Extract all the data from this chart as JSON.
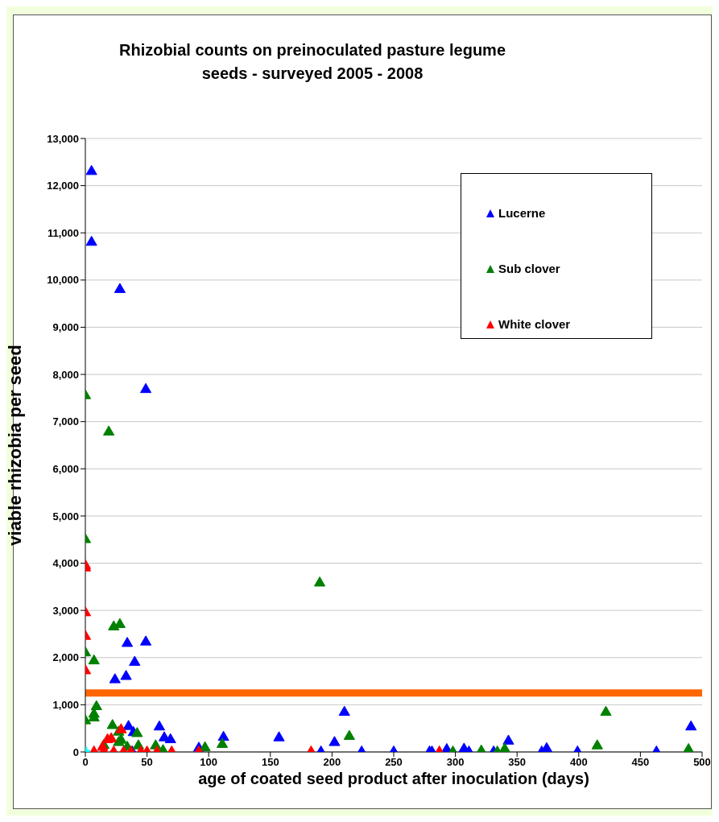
{
  "chart_data": {
    "type": "scatter",
    "title": "Rhizobial counts on preinoculated pasture legume\nseeds - surveyed 2005 - 2008",
    "xlabel": "age of coated seed product after inoculation (days)",
    "ylabel": "viable rhizobia per seed",
    "xlim": [
      0,
      500
    ],
    "xticks": [
      0,
      50,
      100,
      150,
      200,
      250,
      300,
      350,
      400,
      450,
      500
    ],
    "ylim": [
      0,
      13000
    ],
    "yticks": [
      {
        "value": 0,
        "label": "0"
      },
      {
        "value": 1000,
        "label": "1,000"
      },
      {
        "value": 2000,
        "label": "2,000"
      },
      {
        "value": 3000,
        "label": "3,000"
      },
      {
        "value": 4000,
        "label": "4,000"
      },
      {
        "value": 5000,
        "label": "5,000"
      },
      {
        "value": 6000,
        "label": "6,000"
      },
      {
        "value": 7000,
        "label": "7,000"
      },
      {
        "value": 8000,
        "label": "8,000"
      },
      {
        "value": 9000,
        "label": "9,000"
      },
      {
        "value": 10000,
        "label": "10,000"
      },
      {
        "value": 11000,
        "label": "11,000"
      },
      {
        "value": 12000,
        "label": "12,000"
      },
      {
        "value": 13000,
        "label": "13,000"
      }
    ],
    "grid": "y",
    "legend": "top right",
    "marker": "triangle",
    "ref_lines": [
      {
        "axis": "y",
        "value": 1250,
        "color": "#ff6600"
      }
    ],
    "series": [
      {
        "name": "Lucerne",
        "color": "#0000ff",
        "x": [
          5,
          5,
          28,
          49,
          34,
          49,
          40,
          33,
          24,
          35,
          60,
          39,
          64,
          69,
          92,
          112,
          38,
          157,
          210,
          202,
          191,
          224,
          250,
          279,
          281,
          293,
          307,
          311,
          331,
          343,
          370,
          374,
          399,
          463,
          491
        ],
        "values": [
          12300,
          10800,
          9800,
          7680,
          2300,
          2330,
          1900,
          1600,
          1530,
          540,
          530,
          410,
          300,
          260,
          80,
          310,
          0,
          300,
          840,
          200,
          0,
          0,
          0,
          0,
          0,
          50,
          60,
          0,
          0,
          230,
          0,
          70,
          0,
          0,
          530
        ]
      },
      {
        "name": "Sub clover",
        "color": "#008000",
        "x": [
          0,
          0,
          0,
          7,
          19,
          23,
          28,
          190,
          0,
          7,
          9,
          7,
          22,
          27,
          42,
          15,
          29,
          27,
          43,
          57,
          63,
          34,
          97,
          111,
          214,
          298,
          321,
          334,
          340,
          422,
          415,
          489
        ],
        "values": [
          7550,
          4500,
          2100,
          1930,
          6780,
          2650,
          2700,
          3580,
          660,
          800,
          960,
          720,
          560,
          420,
          390,
          140,
          250,
          200,
          130,
          130,
          30,
          100,
          90,
          160,
          330,
          0,
          20,
          0,
          60,
          840,
          130,
          50
        ]
      },
      {
        "name": "White clover",
        "color": "#ff0000",
        "x": [
          0,
          0,
          0,
          0,
          0,
          7,
          14,
          18,
          21,
          29,
          15,
          23,
          31,
          37,
          45,
          50,
          58,
          70,
          92,
          183,
          287
        ],
        "values": [
          3950,
          3900,
          2950,
          2450,
          1720,
          0,
          100,
          260,
          280,
          470,
          0,
          0,
          0,
          0,
          0,
          0,
          0,
          0,
          0,
          0,
          0
        ]
      },
      {
        "color": "#00ffff",
        "marker": "cross",
        "x": [
          0
        ],
        "values": [
          0
        ]
      }
    ]
  }
}
